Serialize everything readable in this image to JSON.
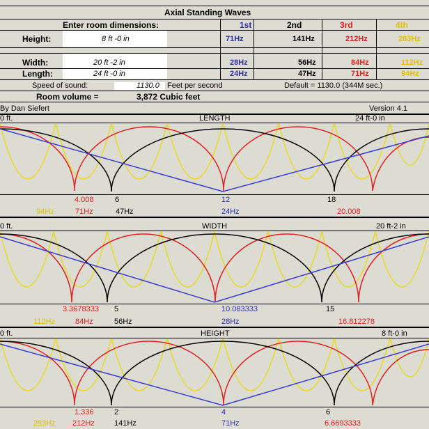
{
  "title": "Axial Standing Waves",
  "enter_label": "Enter room dimensions:",
  "modes": [
    "1st",
    "2nd",
    "3rd",
    "4th"
  ],
  "rows": [
    {
      "label": "Height:",
      "value": "8 ft -0 in",
      "f1": "71Hz",
      "f2": "141Hz",
      "f3": "212Hz",
      "f4": "283Hz"
    },
    {
      "label": "Width:",
      "value": "20 ft -2 in",
      "f1": "28Hz",
      "f2": "56Hz",
      "f3": "84Hz",
      "f4": "112Hz"
    },
    {
      "label": "Length:",
      "value": "24 ft -0 in",
      "f1": "24Hz",
      "f2": "47Hz",
      "f3": "71Hz",
      "f4": "94Hz"
    }
  ],
  "speed_label": "Speed of sound:",
  "speed_value": "1130.0",
  "speed_unit": "Feet per second",
  "speed_default": "Default = 1130.0 (344M sec.)",
  "volume_label": "Room volume =",
  "volume_value": "3,872 Cubic feet",
  "author": "By Dan Siefert",
  "version": "Version 4.1",
  "panels": [
    {
      "name": "LENGTH",
      "start": "0 ft.",
      "end": "24 ft-0 in",
      "marks": [
        "4.008",
        "6",
        "12",
        "18",
        "20.008"
      ],
      "freqs": [
        "94Hz",
        "71Hz",
        "47Hz",
        "24Hz"
      ],
      "colors": {
        "m1": "#3a3ad0",
        "m2": "#000000",
        "m3": "#e02020",
        "m4": "#e8d820"
      }
    },
    {
      "name": "WIDTH",
      "start": "0 ft.",
      "end": "20 ft-2 in",
      "marks": [
        "3.3678333",
        "5",
        "10.083333",
        "15",
        "16.812278"
      ],
      "freqs": [
        "112Hz",
        "84Hz",
        "56Hz",
        "28Hz"
      ]
    },
    {
      "name": "HEIGHT",
      "start": "0 ft.",
      "end": "8 ft-0 in",
      "marks": [
        "1.336",
        "2",
        "4",
        "6",
        "6.6693333"
      ],
      "freqs": [
        "283Hz",
        "212Hz",
        "141Hz",
        "71Hz"
      ]
    }
  ]
}
